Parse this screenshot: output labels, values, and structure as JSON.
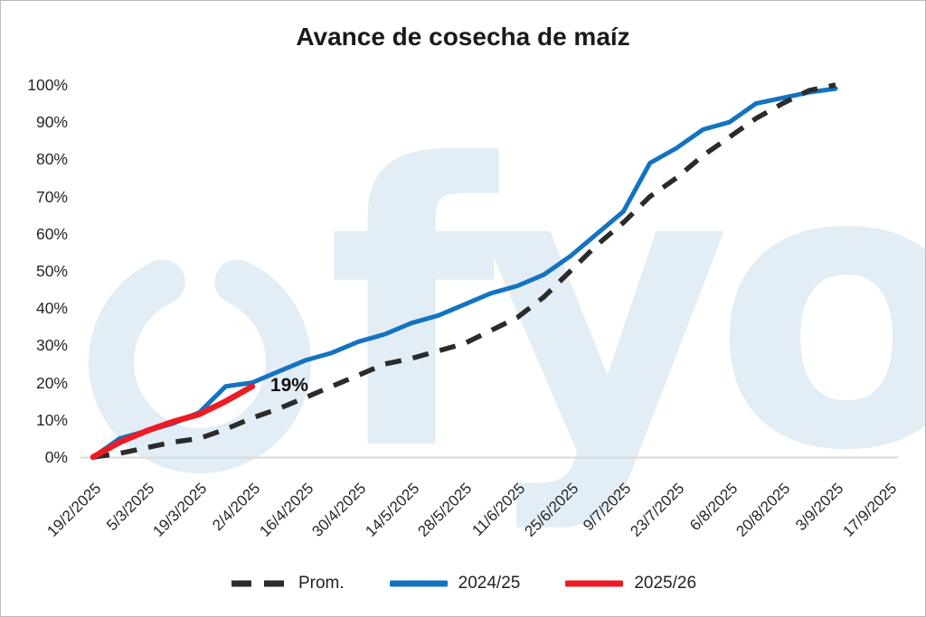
{
  "title": "Avance de cosecha de maíz",
  "watermark_text": "fyo",
  "annotation": {
    "text": "19%",
    "series": "2025/26",
    "at_x": "2/4/2025",
    "value": 19
  },
  "colors": {
    "prom": "#2b2b2b",
    "s2024_25": "#1473c0",
    "s2025_26": "#ee1b24",
    "watermark": "#e2edf5",
    "axis_line": "#d9d9d9",
    "tick_text": "#262626",
    "title_text": "#1a1a1a"
  },
  "chart_data": {
    "type": "line",
    "title": "Avance de cosecha de maíz",
    "xlabel": "",
    "ylabel": "",
    "ylim": [
      0,
      100
    ],
    "y_tick_step": 10,
    "y_tick_labels": [
      "0%",
      "10%",
      "20%",
      "30%",
      "40%",
      "50%",
      "60%",
      "70%",
      "80%",
      "90%",
      "100%"
    ],
    "x_tick_labels": [
      "19/2/2025",
      "5/3/2025",
      "19/3/2025",
      "2/4/2025",
      "16/4/2025",
      "30/4/2025",
      "14/5/2025",
      "28/5/2025",
      "11/6/2025",
      "25/6/2025",
      "9/7/2025",
      "23/7/2025",
      "6/8/2025",
      "20/8/2025",
      "3/9/2025",
      "17/9/2025"
    ],
    "x_weekly": [
      "19/2/2025",
      "26/2/2025",
      "5/3/2025",
      "12/3/2025",
      "19/3/2025",
      "26/3/2025",
      "2/4/2025",
      "9/4/2025",
      "16/4/2025",
      "23/4/2025",
      "30/4/2025",
      "7/5/2025",
      "14/5/2025",
      "21/5/2025",
      "28/5/2025",
      "4/6/2025",
      "11/6/2025",
      "18/6/2025",
      "25/6/2025",
      "2/7/2025",
      "9/7/2025",
      "16/7/2025",
      "23/7/2025",
      "30/7/2025",
      "6/8/2025",
      "13/8/2025",
      "20/8/2025",
      "27/8/2025",
      "3/9/2025"
    ],
    "grid": false,
    "legend_position": "bottom",
    "series": [
      {
        "name": "Prom.",
        "style": "dashed",
        "color_key": "prom",
        "values": [
          0,
          1,
          2.5,
          4,
          5,
          7.5,
          10.5,
          13,
          16,
          19,
          22,
          25,
          26.5,
          28.5,
          30.5,
          34,
          37.5,
          43,
          50,
          57,
          63,
          70,
          75,
          81,
          86,
          91,
          95,
          98.5,
          100
        ]
      },
      {
        "name": "2024/25",
        "style": "solid",
        "color_key": "s2024_25",
        "values": [
          0,
          5,
          7,
          9,
          12,
          19,
          20,
          23,
          26,
          28,
          31,
          33,
          36,
          38,
          41,
          44,
          46,
          49,
          54,
          60,
          66,
          79,
          83,
          88,
          90,
          95,
          96.5,
          98,
          99
        ]
      },
      {
        "name": "2025/26",
        "style": "solid",
        "color_key": "s2025_26",
        "values": [
          0,
          4,
          7,
          9.5,
          11.5,
          15,
          19
        ]
      }
    ]
  }
}
